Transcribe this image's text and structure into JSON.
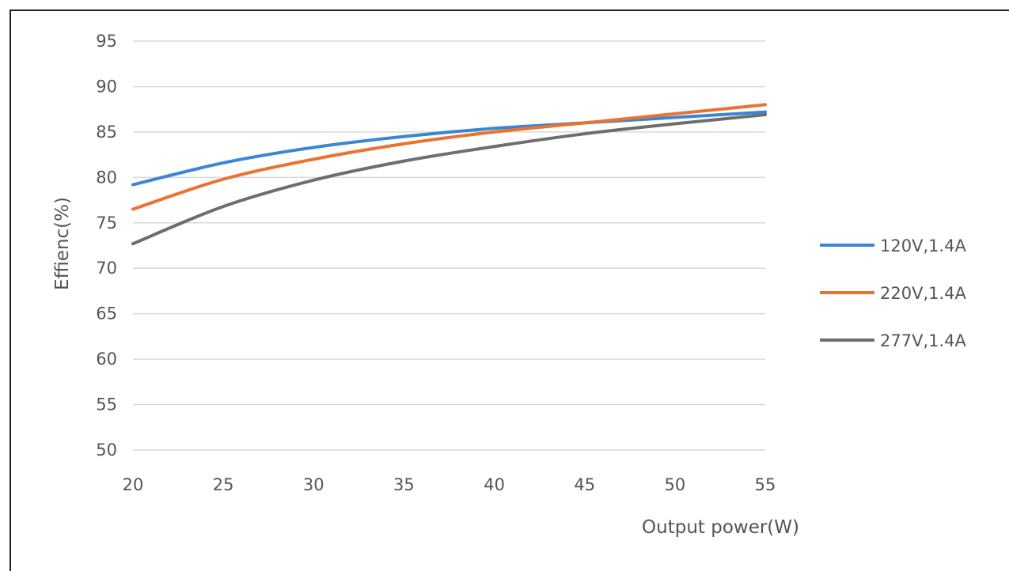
{
  "chart_data": {
    "type": "line",
    "title": "",
    "xlabel": "Output power(W)",
    "ylabel": "Effienc(%)",
    "xlim": [
      20,
      55
    ],
    "ylim": [
      50,
      95
    ],
    "x_ticks": [
      20,
      25,
      30,
      35,
      40,
      45,
      50,
      55
    ],
    "y_ticks": [
      50,
      55,
      60,
      65,
      70,
      75,
      80,
      85,
      90,
      95
    ],
    "grid": true,
    "legend_position": "right",
    "series": [
      {
        "name": "120V,1.4A",
        "color": "#3a86d4",
        "x": [
          20,
          25,
          30,
          35,
          40,
          45,
          50,
          55
        ],
        "y": [
          79.2,
          81.6,
          83.3,
          84.5,
          85.4,
          86.0,
          86.6,
          87.2
        ]
      },
      {
        "name": "220V,1.4A",
        "color": "#ea7330",
        "x": [
          20,
          25,
          30,
          35,
          40,
          45,
          50,
          55
        ],
        "y": [
          76.5,
          79.8,
          82.0,
          83.7,
          85.0,
          86.0,
          87.0,
          88.0
        ]
      },
      {
        "name": "277V,1.4A",
        "color": "#6e6e6e",
        "x": [
          20,
          25,
          30,
          35,
          40,
          45,
          50,
          55
        ],
        "y": [
          72.7,
          76.8,
          79.7,
          81.8,
          83.4,
          84.8,
          85.9,
          86.9
        ]
      }
    ]
  }
}
